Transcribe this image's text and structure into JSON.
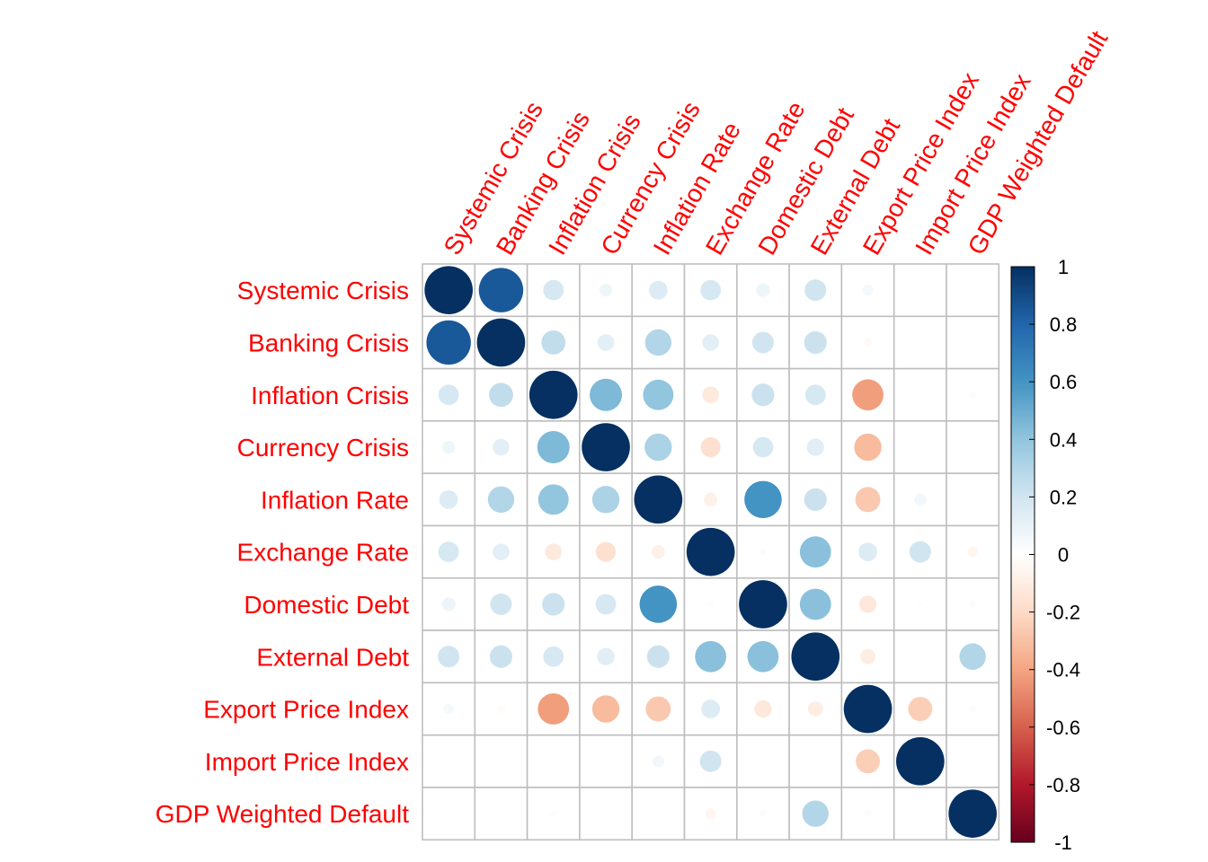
{
  "chart_data": {
    "type": "heatmap",
    "style": "corrplot-circle",
    "variables": [
      "Systemic Crisis",
      "Banking Crisis",
      "Inflation Crisis",
      "Currency Crisis",
      "Inflation Rate",
      "Exchange Rate",
      "Domestic Debt",
      "External Debt",
      "Export Price Index",
      "Import Price Index",
      "GDP Weighted Default"
    ],
    "matrix": [
      [
        1.0,
        0.85,
        0.18,
        0.07,
        0.15,
        0.18,
        0.08,
        0.2,
        0.05,
        0.0,
        0.0
      ],
      [
        0.85,
        1.0,
        0.25,
        0.12,
        0.3,
        0.12,
        0.2,
        0.22,
        -0.03,
        0.0,
        0.0
      ],
      [
        0.18,
        0.25,
        1.0,
        0.45,
        0.4,
        -0.12,
        0.22,
        0.18,
        -0.42,
        0.0,
        0.02
      ],
      [
        0.07,
        0.12,
        0.45,
        1.0,
        0.32,
        -0.17,
        0.18,
        0.13,
        -0.32,
        0.0,
        0.0
      ],
      [
        0.15,
        0.3,
        0.4,
        0.32,
        1.0,
        -0.08,
        0.6,
        0.22,
        -0.27,
        0.06,
        0.0
      ],
      [
        0.18,
        0.12,
        -0.12,
        -0.17,
        -0.08,
        1.0,
        -0.02,
        0.42,
        0.15,
        0.2,
        -0.05
      ],
      [
        0.08,
        0.2,
        0.22,
        0.18,
        0.6,
        -0.02,
        1.0,
        0.42,
        -0.13,
        -0.01,
        -0.02
      ],
      [
        0.2,
        0.22,
        0.18,
        0.13,
        0.22,
        0.42,
        0.42,
        1.0,
        -0.1,
        0.0,
        0.3
      ],
      [
        0.05,
        -0.03,
        -0.42,
        -0.32,
        -0.27,
        0.15,
        -0.13,
        -0.1,
        1.0,
        -0.25,
        -0.02
      ],
      [
        0.0,
        0.0,
        0.0,
        0.0,
        0.06,
        0.2,
        -0.01,
        0.0,
        -0.25,
        1.0,
        0.0
      ],
      [
        0.0,
        0.0,
        0.02,
        0.0,
        0.0,
        -0.05,
        -0.02,
        0.3,
        -0.02,
        0.0,
        1.0
      ]
    ],
    "legend": {
      "ticks": [
        "1",
        "0.8",
        "0.6",
        "0.4",
        "0.2",
        "0",
        "-0.2",
        "-0.4",
        "-0.6",
        "-0.8",
        "-1"
      ],
      "range": [
        -1,
        1
      ],
      "position": "right"
    },
    "colors": {
      "label": "#ff0000",
      "grid": "#bebebe",
      "scale": [
        "#67001f",
        "#b2182b",
        "#d6604d",
        "#f4a582",
        "#fddbc7",
        "#ffffff",
        "#d1e5f0",
        "#92c5de",
        "#4393c3",
        "#2166ac",
        "#053061"
      ]
    }
  }
}
